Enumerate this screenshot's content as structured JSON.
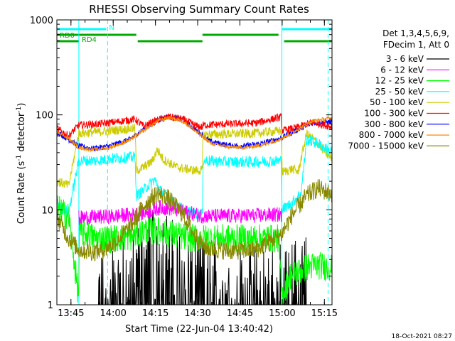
{
  "chart_data": {
    "type": "line",
    "title": "RHESSI Observing Summary Count Rates",
    "xlabel": "Start Time (22-Jun-04 13:40:42)",
    "ylabel": "Count Rate (s^-1 detector^-1)",
    "ylabel_parts": {
      "a": "Count Rate (s",
      "sup1": "-1",
      "b": " detector",
      "sup2": "-1",
      "c": ")"
    },
    "xlim_minutes": [
      -0.7,
      97
    ],
    "ylim": [
      1,
      1000
    ],
    "yscale": "log",
    "x_ticks": [
      {
        "label": "13:45",
        "minute": 4.3
      },
      {
        "label": "14:00",
        "minute": 19.3
      },
      {
        "label": "14:15",
        "minute": 34.3
      },
      {
        "label": "14:30",
        "minute": 49.3
      },
      {
        "label": "14:45",
        "minute": 64.3
      },
      {
        "label": "15:00",
        "minute": 79.3
      },
      {
        "label": "15:15",
        "minute": 94.3
      }
    ],
    "y_ticks": [
      {
        "label": "1",
        "value": 1
      },
      {
        "label": "10",
        "value": 10
      },
      {
        "label": "100",
        "value": 100
      },
      {
        "label": "1000",
        "value": 1000
      }
    ],
    "legend_header": [
      "Det 1,3,4,5,6,9,",
      "FDecim 1, Att 0"
    ],
    "legend_position": "right",
    "timestamp": "18-Oct-2021 08:27",
    "flags": [
      {
        "label": "N",
        "color": "#00ffff",
        "start_min": -0.7,
        "end_min": 16.8,
        "level": 0
      },
      {
        "label": "N",
        "color": "#00ffff",
        "start_min": 79.3,
        "end_min": 97,
        "level": 0
      },
      {
        "label": "RD0",
        "color": "#00aa00",
        "start_min": -0.7,
        "end_min": 27.5,
        "level": 1
      },
      {
        "label": "RD4",
        "color": "#00aa00",
        "start_min": -0.7,
        "end_min": 7.1,
        "level": 2
      },
      {
        "label": "",
        "color": "#00aa00",
        "start_min": 28.0,
        "end_min": 51.0,
        "level": 2
      },
      {
        "label": "",
        "color": "#00aa00",
        "start_min": 51.0,
        "end_min": 78.0,
        "level": 1
      },
      {
        "label": "",
        "color": "#00aa00",
        "start_min": 80.0,
        "end_min": 97,
        "level": 2
      }
    ],
    "vlines": [
      {
        "minute": 17.3,
        "color": "#00ffff",
        "style": "dashed"
      },
      {
        "minute": 95.6,
        "color": "#00ffff",
        "style": "dashed"
      },
      {
        "minute": 7.1,
        "color": "#00ffff",
        "style": "solid"
      },
      {
        "minute": 79.2,
        "color": "#00ffff",
        "style": "solid"
      }
    ],
    "series": [
      {
        "name": "3 - 6 keV",
        "color": "#000000",
        "noise": 0.5,
        "data_gaps": [
          [
            -0.7,
            14.0
          ],
          [
            88.0,
            97
          ]
        ],
        "points": [
          [
            14.0,
            1.3
          ],
          [
            24.0,
            1.6
          ],
          [
            30.0,
            3.0
          ],
          [
            36.0,
            3.6
          ],
          [
            42.0,
            2.8
          ],
          [
            50.0,
            1.6
          ],
          [
            60.0,
            1.4
          ],
          [
            70.0,
            1.3
          ],
          [
            78.0,
            1.6
          ],
          [
            80.0,
            1.2
          ],
          [
            86.0,
            2.0
          ]
        ]
      },
      {
        "name": "6 - 12 keV",
        "color": "#ff00ff",
        "noise": 0.08,
        "points": [
          [
            7.1,
            8.2
          ],
          [
            20.0,
            8.6
          ],
          [
            27.0,
            8.9
          ],
          [
            32.0,
            9.6
          ],
          [
            36.0,
            10.6
          ],
          [
            41.0,
            10.2
          ],
          [
            46.0,
            9.3
          ],
          [
            51.0,
            8.6
          ],
          [
            60.0,
            8.6
          ],
          [
            70.0,
            8.7
          ],
          [
            78.0,
            8.9
          ]
        ],
        "data_gaps": [
          [
            -0.7,
            7.1
          ],
          [
            79.2,
            97
          ]
        ]
      },
      {
        "name": "12 - 25 keV",
        "color": "#00ff00",
        "noise": 0.15,
        "points": [
          [
            -0.7,
            10.5
          ],
          [
            3.5,
            8.5
          ],
          [
            7.0,
            1.2
          ],
          [
            7.3,
            6.0
          ],
          [
            13.0,
            5.0
          ],
          [
            20.0,
            5.0
          ],
          [
            26.0,
            5.2
          ],
          [
            30.0,
            6.0
          ],
          [
            35.0,
            6.0
          ],
          [
            40.0,
            5.6
          ],
          [
            46.0,
            5.0
          ],
          [
            52.0,
            5.0
          ],
          [
            60.0,
            5.0
          ],
          [
            70.0,
            5.0
          ],
          [
            78.0,
            5.0
          ],
          [
            79.2,
            1.2
          ],
          [
            82.0,
            2.0
          ],
          [
            86.0,
            2.3
          ],
          [
            88.0,
            2.5
          ],
          [
            92.0,
            2.6
          ],
          [
            95.0,
            2.5
          ]
        ]
      },
      {
        "name": "25 - 50 keV",
        "color": "#00ffff",
        "noise": 0.06,
        "points": [
          [
            -0.7,
            11.0
          ],
          [
            3.5,
            9.5
          ],
          [
            7.1,
            33.0
          ],
          [
            14.0,
            33.0
          ],
          [
            20.0,
            35.0
          ],
          [
            27.0,
            36.0
          ],
          [
            27.6,
            14.0
          ],
          [
            30.0,
            16.0
          ],
          [
            34.0,
            21.0
          ],
          [
            36.0,
            16.0
          ],
          [
            42.0,
            11.0
          ],
          [
            46.0,
            9.5
          ],
          [
            51.0,
            9.0
          ],
          [
            51.2,
            33.0
          ],
          [
            60.0,
            32.0
          ],
          [
            70.0,
            32.0
          ],
          [
            79.0,
            33.0
          ],
          [
            79.3,
            10.0
          ],
          [
            83.0,
            12.0
          ],
          [
            86.0,
            15.0
          ],
          [
            88.0,
            55.0
          ],
          [
            92.0,
            50.0
          ],
          [
            96.0,
            42.0
          ]
        ]
      },
      {
        "name": "50 - 100 keV",
        "color": "#cccc00",
        "noise": 0.05,
        "points": [
          [
            -0.7,
            20.0
          ],
          [
            3.5,
            18.0
          ],
          [
            7.1,
            64.0
          ],
          [
            14.0,
            66.0
          ],
          [
            20.0,
            69.0
          ],
          [
            27.0,
            72.0
          ],
          [
            27.6,
            26.0
          ],
          [
            30.0,
            28.0
          ],
          [
            33.0,
            32.0
          ],
          [
            35.0,
            43.0
          ],
          [
            37.0,
            34.0
          ],
          [
            42.0,
            28.0
          ],
          [
            48.0,
            26.0
          ],
          [
            51.0,
            26.0
          ],
          [
            51.2,
            62.0
          ],
          [
            60.0,
            63.0
          ],
          [
            70.0,
            64.0
          ],
          [
            79.0,
            68.0
          ],
          [
            79.3,
            25.0
          ],
          [
            83.0,
            27.0
          ],
          [
            85.0,
            25.0
          ],
          [
            88.0,
            64.0
          ],
          [
            92.0,
            50.0
          ],
          [
            96.0,
            36.0
          ]
        ]
      },
      {
        "name": "100 - 300 keV",
        "color": "#ff0000",
        "noise": 0.04,
        "points": [
          [
            -0.7,
            72.0
          ],
          [
            3.5,
            60.0
          ],
          [
            7.1,
            78.0
          ],
          [
            14.0,
            80.0
          ],
          [
            20.0,
            84.0
          ],
          [
            27.0,
            90.0
          ],
          [
            30.0,
            76.0
          ],
          [
            35.0,
            88.0
          ],
          [
            39.0,
            95.0
          ],
          [
            44.0,
            90.0
          ],
          [
            49.0,
            76.0
          ],
          [
            51.0,
            74.0
          ],
          [
            51.2,
            78.0
          ],
          [
            60.0,
            80.0
          ],
          [
            70.0,
            82.0
          ],
          [
            79.0,
            95.0
          ],
          [
            79.3,
            68.0
          ],
          [
            85.0,
            74.0
          ],
          [
            90.0,
            84.0
          ],
          [
            96.0,
            76.0
          ]
        ]
      },
      {
        "name": "300 - 800 keV",
        "color": "#0000ff",
        "noise": 0.03,
        "points": [
          [
            -0.7,
            66.0
          ],
          [
            3.5,
            55.0
          ],
          [
            7.1,
            47.0
          ],
          [
            12.0,
            44.0
          ],
          [
            18.0,
            47.0
          ],
          [
            25.0,
            55.0
          ],
          [
            30.0,
            70.0
          ],
          [
            35.0,
            88.0
          ],
          [
            39.0,
            97.0
          ],
          [
            44.0,
            88.0
          ],
          [
            49.0,
            68.0
          ],
          [
            54.0,
            52.0
          ],
          [
            60.0,
            48.0
          ],
          [
            66.0,
            47.0
          ],
          [
            72.0,
            50.0
          ],
          [
            79.0,
            57.0
          ],
          [
            84.0,
            68.0
          ],
          [
            90.0,
            82.0
          ],
          [
            96.0,
            84.0
          ]
        ]
      },
      {
        "name": "800 - 7000 keV",
        "color": "#ff8800",
        "noise": 0.02,
        "points": [
          [
            -0.7,
            68.0
          ],
          [
            3.5,
            56.0
          ],
          [
            7.1,
            45.0
          ],
          [
            12.0,
            43.0
          ],
          [
            18.0,
            45.0
          ],
          [
            25.0,
            54.0
          ],
          [
            30.0,
            68.0
          ],
          [
            35.0,
            86.0
          ],
          [
            39.0,
            94.0
          ],
          [
            44.0,
            86.0
          ],
          [
            49.0,
            66.0
          ],
          [
            54.0,
            50.0
          ],
          [
            60.0,
            46.0
          ],
          [
            66.0,
            45.0
          ],
          [
            72.0,
            48.0
          ],
          [
            79.0,
            56.0
          ],
          [
            84.0,
            68.0
          ],
          [
            90.0,
            86.0
          ],
          [
            96.0,
            92.0
          ]
        ]
      },
      {
        "name": "7000 - 15000 keV",
        "color": "#888800",
        "noise": 0.1,
        "points": [
          [
            -0.7,
            8.5
          ],
          [
            3.5,
            5.0
          ],
          [
            7.1,
            3.8
          ],
          [
            12.0,
            3.6
          ],
          [
            16.0,
            3.8
          ],
          [
            20.0,
            4.5
          ],
          [
            26.0,
            7.0
          ],
          [
            30.0,
            11.0
          ],
          [
            35.0,
            15.0
          ],
          [
            39.0,
            13.0
          ],
          [
            44.0,
            9.0
          ],
          [
            48.0,
            5.5
          ],
          [
            52.0,
            4.0
          ],
          [
            60.0,
            3.7
          ],
          [
            70.0,
            3.8
          ],
          [
            79.0,
            5.5
          ],
          [
            83.0,
            9.0
          ],
          [
            88.0,
            14.0
          ],
          [
            92.0,
            17.0
          ],
          [
            96.0,
            15.0
          ]
        ]
      }
    ]
  }
}
